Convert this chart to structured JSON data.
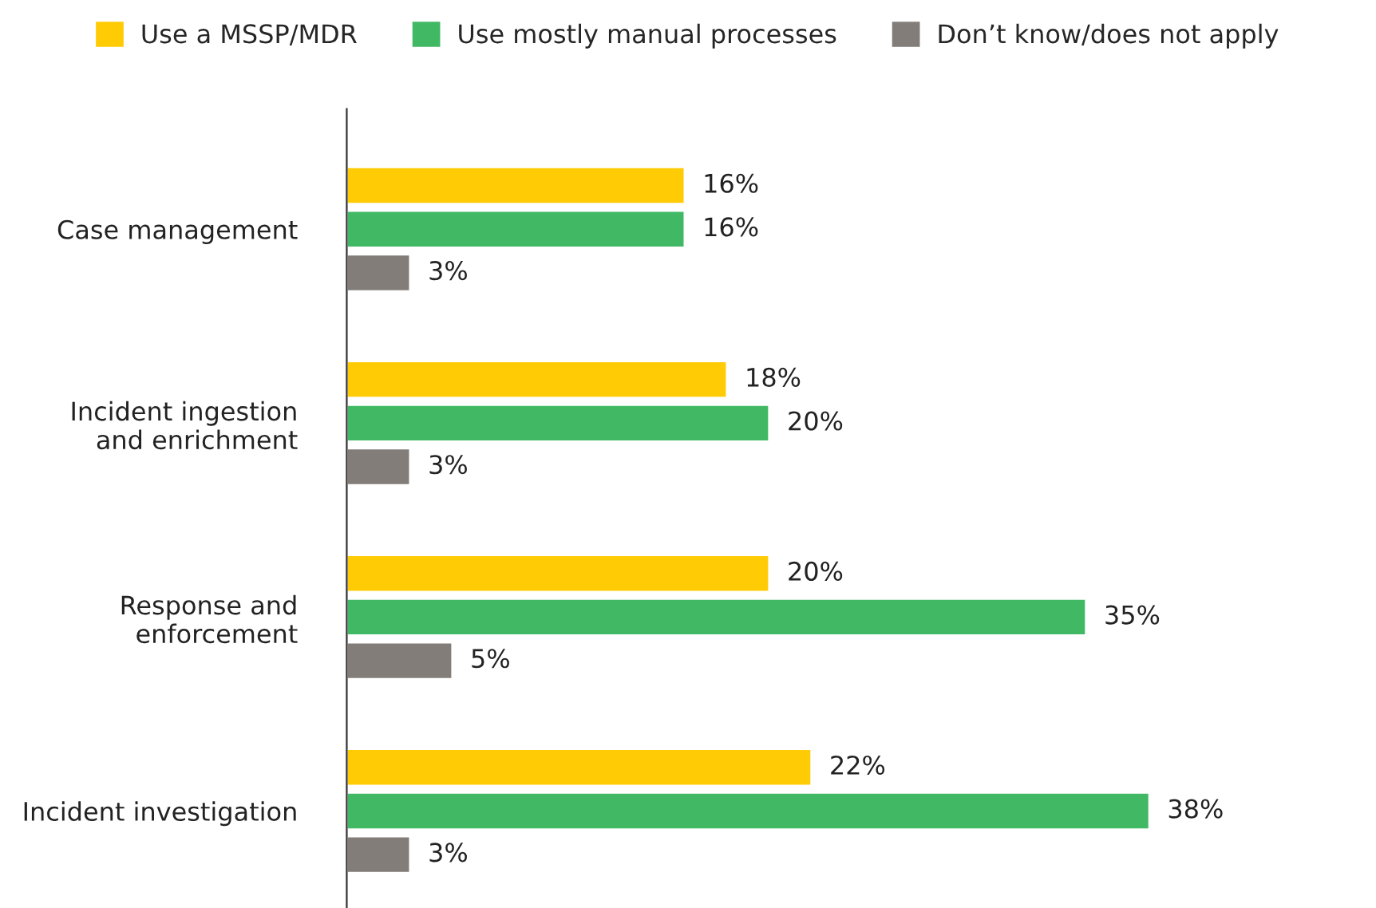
{
  "chart_data": {
    "type": "bar",
    "orientation": "horizontal",
    "categories": [
      "Case management",
      "Incident ingestion\nand enrichment",
      "Response and\nenforcement",
      "Incident investigation"
    ],
    "series": [
      {
        "name": "Use a MSSP/MDR",
        "color": "#ffcb05",
        "values": [
          16,
          18,
          20,
          22
        ],
        "value_labels": [
          "16%",
          "18%",
          "20%",
          "22%"
        ]
      },
      {
        "name": "Use mostly manual processes",
        "color": "#41b964",
        "values": [
          16,
          20,
          35,
          38
        ],
        "value_labels": [
          "16%",
          "20%",
          "35%",
          "38%"
        ]
      },
      {
        "name": "Don’t know/does not apply",
        "color": "#827d78",
        "values": [
          3,
          3,
          5,
          3
        ],
        "value_labels": [
          "3%",
          "3%",
          "5%",
          "3%"
        ]
      }
    ],
    "legend": "top"
  }
}
